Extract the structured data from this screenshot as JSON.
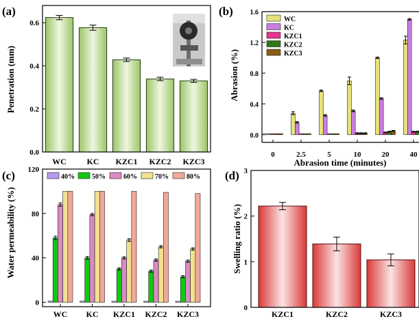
{
  "chart_data": [
    {
      "panel_label": "(a)",
      "type": "bar",
      "categories": [
        "WC",
        "KC",
        "KZC1",
        "KZC2",
        "KZC3"
      ],
      "values": [
        0.624,
        0.577,
        0.428,
        0.339,
        0.33
      ],
      "errors": [
        0.01,
        0.012,
        0.008,
        0.008,
        0.007
      ],
      "ylabel": "Penetration (mm)",
      "xlabel": "",
      "ylim": [
        0,
        0.68
      ],
      "yticks": [
        0.0,
        0.2,
        0.4,
        0.6
      ],
      "ytick_labels": [
        "0.0",
        "0.2",
        "0.4",
        "0.6"
      ],
      "colors": {
        "bar": "#b5d58a",
        "edge": "#2a3a10"
      },
      "inset_photo": "penetrometer-photo"
    },
    {
      "panel_label": "(b)",
      "type": "bar",
      "categories": [
        "0",
        "2.5",
        "5",
        "10",
        "20",
        "40"
      ],
      "xlabel": "Abrasion time (minutes)",
      "ylabel": "Abrasion (%)",
      "ylim": [
        -0.1,
        1.6
      ],
      "yticks": [
        0.0,
        0.4,
        0.8,
        1.2,
        1.6
      ],
      "ytick_labels": [
        "0.0",
        "0.4",
        "0.8",
        "1.2",
        "1.6"
      ],
      "legend_position": "top-left",
      "series": [
        {
          "name": "WC",
          "color": "#e6e27a",
          "values": [
            0.0,
            0.28,
            0.57,
            0.7,
            1.0,
            1.23
          ],
          "errors": [
            0,
            0.02,
            0.01,
            0.05,
            0.01,
            0.05
          ]
        },
        {
          "name": "KC",
          "color": "#cc7fe0",
          "values": [
            0.0,
            0.16,
            0.25,
            0.31,
            0.47,
            1.5
          ],
          "errors": [
            0,
            0.01,
            0.01,
            0.01,
            0.01,
            0.01
          ]
        },
        {
          "name": "KZC1",
          "color": "#e8348c",
          "values": [
            0.0,
            0.0,
            0.0,
            0.02,
            0.03,
            0.04
          ],
          "errors": [
            0,
            0,
            0,
            0.005,
            0.005,
            0.005
          ]
        },
        {
          "name": "KZC2",
          "color": "#2f7a18",
          "values": [
            0.0,
            0.0,
            0.0,
            0.02,
            0.04,
            0.04
          ],
          "errors": [
            0,
            0,
            0,
            0.005,
            0.005,
            0.005
          ]
        },
        {
          "name": "KZC3",
          "color": "#8a5a12",
          "values": [
            0.0,
            0.0,
            0.0,
            0.02,
            0.05,
            0.07
          ],
          "errors": [
            0,
            0,
            0,
            0.005,
            0.005,
            0.005
          ]
        }
      ]
    },
    {
      "panel_label": "(c)",
      "type": "bar",
      "categories": [
        "WC",
        "KC",
        "KZC1",
        "KZC2",
        "KZC3"
      ],
      "xlabel": "",
      "ylabel": "Water permeability (%)",
      "ylim": [
        -4,
        120
      ],
      "yticks": [
        0,
        40,
        80,
        120
      ],
      "ytick_labels": [
        "0",
        "40",
        "80",
        "120"
      ],
      "legend_position": "top",
      "series": [
        {
          "name": "40%",
          "color": "#b79ae8",
          "values": [
            1,
            1,
            0,
            0,
            0
          ],
          "errors": [
            0,
            0,
            0,
            0,
            0
          ]
        },
        {
          "name": "50%",
          "color": "#12c712",
          "values": [
            58,
            40,
            30,
            28,
            23
          ],
          "errors": [
            1.5,
            1.2,
            1.0,
            1.0,
            1.0
          ]
        },
        {
          "name": "60%",
          "color": "#d98bc2",
          "values": [
            88,
            79,
            40,
            38,
            37
          ],
          "errors": [
            1.5,
            1.0,
            1.0,
            1.0,
            1.0
          ]
        },
        {
          "name": "70%",
          "color": "#f1e18e",
          "values": [
            100,
            100,
            56,
            50,
            48
          ],
          "errors": [
            0,
            0,
            1.2,
            1.0,
            1.0
          ]
        },
        {
          "name": "80%",
          "color": "#f2a898",
          "values": [
            100,
            100,
            100,
            99,
            98
          ],
          "errors": [
            0,
            0,
            0,
            0,
            0
          ]
        }
      ]
    },
    {
      "panel_label": "(d)",
      "type": "bar",
      "categories": [
        "KZC1",
        "KZC2",
        "KZC3"
      ],
      "values": [
        2.22,
        1.39,
        1.04
      ],
      "errors": [
        0.08,
        0.15,
        0.13
      ],
      "ylabel": "Swelling ratio (%)",
      "xlabel": "",
      "ylim": [
        0,
        3
      ],
      "yticks": [
        0,
        1,
        2,
        3
      ],
      "ytick_labels": [
        "0",
        "1",
        "2",
        "3"
      ],
      "colors": {
        "bar": "#d63a3a",
        "edge": "#5a0d0d"
      }
    }
  ]
}
